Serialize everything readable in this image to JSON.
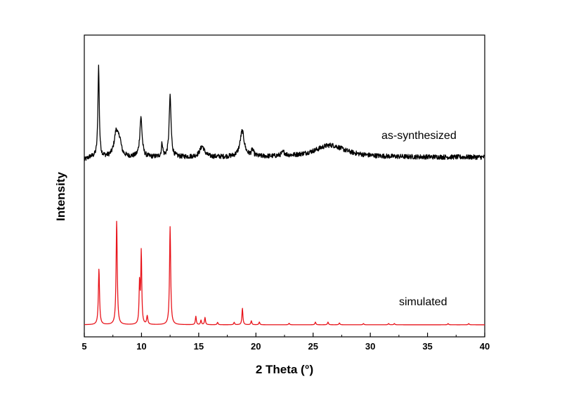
{
  "chart_data": {
    "type": "line",
    "title": "",
    "xlabel": "2 Theta (°)",
    "ylabel": "Intensity",
    "xlim": [
      5,
      40
    ],
    "ylim": [
      0,
      1
    ],
    "xticks": [
      5,
      10,
      15,
      20,
      25,
      30,
      35,
      40
    ],
    "xtick_labels": [
      "5",
      "10",
      "15",
      "20",
      "25",
      "30",
      "35",
      "40"
    ],
    "yticks_shown": false,
    "grid": false,
    "series": [
      {
        "name": "as-synthesized",
        "color": "#000000",
        "label_text": "as-synthesized",
        "baseline": 0.595,
        "noise": 0.008,
        "peaks": [
          {
            "x": 6.25,
            "h": 0.3,
            "w": 0.07
          },
          {
            "x": 7.8,
            "h": 0.085,
            "w": 0.22
          },
          {
            "x": 8.1,
            "h": 0.04,
            "w": 0.15
          },
          {
            "x": 9.95,
            "h": 0.13,
            "w": 0.12
          },
          {
            "x": 11.8,
            "h": 0.045,
            "w": 0.07
          },
          {
            "x": 12.5,
            "h": 0.2,
            "w": 0.1
          },
          {
            "x": 15.3,
            "h": 0.035,
            "w": 0.25
          },
          {
            "x": 18.8,
            "h": 0.085,
            "w": 0.22
          },
          {
            "x": 19.7,
            "h": 0.02,
            "w": 0.12
          },
          {
            "x": 22.4,
            "h": 0.012,
            "w": 0.2
          },
          {
            "x": 26.5,
            "h": 0.04,
            "w": 1.6
          }
        ]
      },
      {
        "name": "simulated",
        "color": "#e8141b",
        "label_text": "simulated",
        "baseline": 0.04,
        "noise": 0.0,
        "peaks": [
          {
            "x": 6.28,
            "h": 0.185,
            "w": 0.06
          },
          {
            "x": 7.83,
            "h": 0.345,
            "w": 0.06
          },
          {
            "x": 9.83,
            "h": 0.135,
            "w": 0.05
          },
          {
            "x": 9.98,
            "h": 0.24,
            "w": 0.05
          },
          {
            "x": 10.5,
            "h": 0.028,
            "w": 0.06
          },
          {
            "x": 12.5,
            "h": 0.325,
            "w": 0.06
          },
          {
            "x": 14.75,
            "h": 0.028,
            "w": 0.05
          },
          {
            "x": 15.2,
            "h": 0.015,
            "w": 0.05
          },
          {
            "x": 15.55,
            "h": 0.024,
            "w": 0.05
          },
          {
            "x": 16.65,
            "h": 0.008,
            "w": 0.05
          },
          {
            "x": 18.1,
            "h": 0.008,
            "w": 0.05
          },
          {
            "x": 18.82,
            "h": 0.055,
            "w": 0.05
          },
          {
            "x": 19.6,
            "h": 0.013,
            "w": 0.05
          },
          {
            "x": 20.3,
            "h": 0.009,
            "w": 0.05
          },
          {
            "x": 22.9,
            "h": 0.005,
            "w": 0.05
          },
          {
            "x": 25.2,
            "h": 0.009,
            "w": 0.05
          },
          {
            "x": 26.3,
            "h": 0.009,
            "w": 0.05
          },
          {
            "x": 27.3,
            "h": 0.006,
            "w": 0.05
          },
          {
            "x": 29.4,
            "h": 0.004,
            "w": 0.05
          },
          {
            "x": 31.6,
            "h": 0.004,
            "w": 0.05
          },
          {
            "x": 32.1,
            "h": 0.004,
            "w": 0.05
          },
          {
            "x": 36.8,
            "h": 0.004,
            "w": 0.05
          },
          {
            "x": 38.6,
            "h": 0.004,
            "w": 0.05
          }
        ]
      }
    ]
  }
}
